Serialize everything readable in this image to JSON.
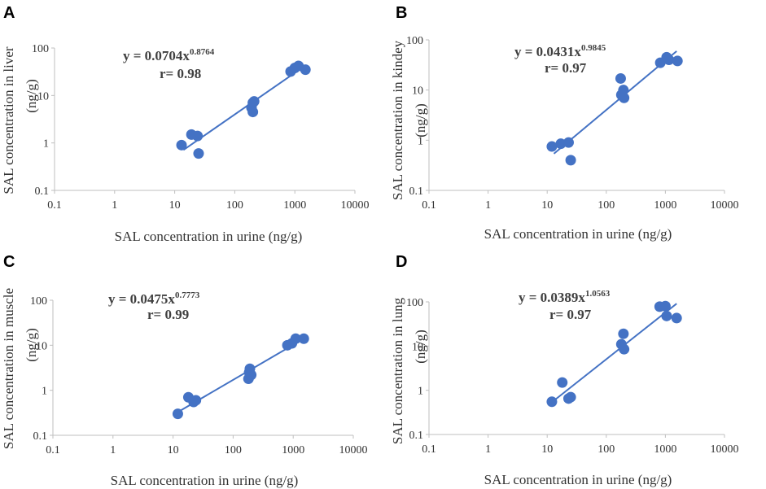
{
  "chart_data": [
    {
      "type": "scatter",
      "panel_label": "A",
      "title": "",
      "xlabel": "SAL concentration in urine (ng/g)",
      "ylabel": "SAL concentration in liver",
      "ylabel_unit": "(ng/g)",
      "xscale": "log",
      "yscale": "log",
      "xlim": [
        0.1,
        10000
      ],
      "ylim": [
        0.1,
        100
      ],
      "x_ticks": [
        "0.1",
        "1",
        "10",
        "100",
        "1000",
        "10000"
      ],
      "y_ticks": [
        "0.1",
        "1",
        "10",
        "100"
      ],
      "x_tick_values": [
        0.1,
        1,
        10,
        100,
        1000,
        10000
      ],
      "y_tick_values": [
        0.1,
        1,
        10,
        100
      ],
      "equation": {
        "base": "y = 0.0704x",
        "exponent": "0.8764",
        "r": "r= 0.98"
      },
      "fit": {
        "coef": 0.0704,
        "exp": 0.8764,
        "x_range": [
          14,
          1400
        ]
      },
      "series": [
        {
          "name": "data",
          "points": [
            [
              13,
              0.9
            ],
            [
              19,
              1.5
            ],
            [
              24,
              1.4
            ],
            [
              25,
              0.6
            ],
            [
              190,
              5.5
            ],
            [
              200,
              4.5
            ],
            [
              200,
              7.0
            ],
            [
              210,
              7.5
            ],
            [
              850,
              32
            ],
            [
              1000,
              38
            ],
            [
              1150,
              42
            ],
            [
              1500,
              35
            ]
          ]
        }
      ],
      "colors": {
        "points": "#4472c4",
        "fit": "#4472c4",
        "axis": "#bfbfbf"
      }
    },
    {
      "type": "scatter",
      "panel_label": "B",
      "title": "",
      "xlabel": "SAL concentration in urine (ng/g)",
      "ylabel": "SAL concentration in kindey",
      "ylabel_unit": "(ng/g)",
      "xscale": "log",
      "yscale": "log",
      "xlim": [
        0.1,
        10000
      ],
      "ylim": [
        0.1,
        100
      ],
      "x_ticks": [
        "0.1",
        "1",
        "10",
        "100",
        "1000",
        "10000"
      ],
      "y_ticks": [
        "0.1",
        "1",
        "10",
        "100"
      ],
      "x_tick_values": [
        0.1,
        1,
        10,
        100,
        1000,
        10000
      ],
      "y_tick_values": [
        0.1,
        1,
        10,
        100
      ],
      "equation": {
        "base": "y = 0.0431x",
        "exponent": "0.9845",
        "r": "r= 0.97"
      },
      "fit": {
        "coef": 0.0431,
        "exp": 0.9845,
        "x_range": [
          13,
          1550
        ]
      },
      "series": [
        {
          "name": "data",
          "points": [
            [
              12,
              0.75
            ],
            [
              17,
              0.85
            ],
            [
              23,
              0.9
            ],
            [
              25,
              0.4
            ],
            [
              175,
              17
            ],
            [
              180,
              8
            ],
            [
              195,
              10
            ],
            [
              200,
              7
            ],
            [
              820,
              35
            ],
            [
              1050,
              45
            ],
            [
              1150,
              40
            ],
            [
              1600,
              38
            ]
          ]
        }
      ],
      "colors": {
        "points": "#4472c4",
        "fit": "#4472c4",
        "axis": "#bfbfbf"
      }
    },
    {
      "type": "scatter",
      "panel_label": "C",
      "title": "",
      "xlabel": "SAL concentration in urine (ng/g)",
      "ylabel": "SAL concentration in muscle",
      "ylabel_unit": "(ng/g)",
      "xscale": "log",
      "yscale": "log",
      "xlim": [
        0.1,
        10000
      ],
      "ylim": [
        0.1,
        100
      ],
      "x_ticks": [
        "0.1",
        "1",
        "10",
        "100",
        "1000",
        "10000"
      ],
      "y_ticks": [
        "0.1",
        "1",
        "10",
        "100"
      ],
      "x_tick_values": [
        0.1,
        1,
        10,
        100,
        1000,
        10000
      ],
      "y_tick_values": [
        0.1,
        1,
        10,
        100
      ],
      "equation": {
        "base": "y = 0.0475x",
        "exponent": "0.7773",
        "r": "r= 0.99"
      },
      "fit": {
        "coef": 0.0475,
        "exp": 0.7773,
        "x_range": [
          13,
          1500
        ]
      },
      "series": [
        {
          "name": "data",
          "points": [
            [
              12,
              0.3
            ],
            [
              18,
              0.7
            ],
            [
              22,
              0.55
            ],
            [
              24,
              0.6
            ],
            [
              180,
              1.8
            ],
            [
              185,
              2.5
            ],
            [
              190,
              3.0
            ],
            [
              200,
              2.2
            ],
            [
              800,
              10
            ],
            [
              950,
              11
            ],
            [
              1100,
              14
            ],
            [
              1500,
              14
            ]
          ]
        }
      ],
      "colors": {
        "points": "#4472c4",
        "fit": "#4472c4",
        "axis": "#bfbfbf"
      }
    },
    {
      "type": "scatter",
      "panel_label": "D",
      "title": "",
      "xlabel": "SAL concentration in urine (ng/g)",
      "ylabel": "SAL concentration in lung",
      "ylabel_unit": "(ng/g)",
      "xscale": "log",
      "yscale": "log",
      "xlim": [
        0.1,
        10000
      ],
      "ylim": [
        0.1,
        100
      ],
      "x_ticks": [
        "0.1",
        "1",
        "10",
        "100",
        "1000",
        "10000"
      ],
      "y_ticks": [
        "0.1",
        "1",
        "10",
        "100"
      ],
      "x_tick_values": [
        0.1,
        1,
        10,
        100,
        1000,
        10000
      ],
      "y_tick_values": [
        0.1,
        1,
        10,
        100
      ],
      "equation": {
        "base": "y = 0.0389x",
        "exponent": "1.0563",
        "r": "r= 0.97"
      },
      "fit": {
        "coef": 0.0389,
        "exp": 1.0563,
        "x_range": [
          14,
          1550
        ]
      },
      "series": [
        {
          "name": "data",
          "points": [
            [
              12,
              0.55
            ],
            [
              18,
              1.5
            ],
            [
              23,
              0.65
            ],
            [
              25,
              0.7
            ],
            [
              180,
              11
            ],
            [
              195,
              19
            ],
            [
              200,
              8.5
            ],
            [
              800,
              78
            ],
            [
              1000,
              80
            ],
            [
              1050,
              48
            ],
            [
              1550,
              43
            ]
          ]
        }
      ],
      "colors": {
        "points": "#4472c4",
        "fit": "#4472c4",
        "axis": "#bfbfbf"
      }
    }
  ]
}
